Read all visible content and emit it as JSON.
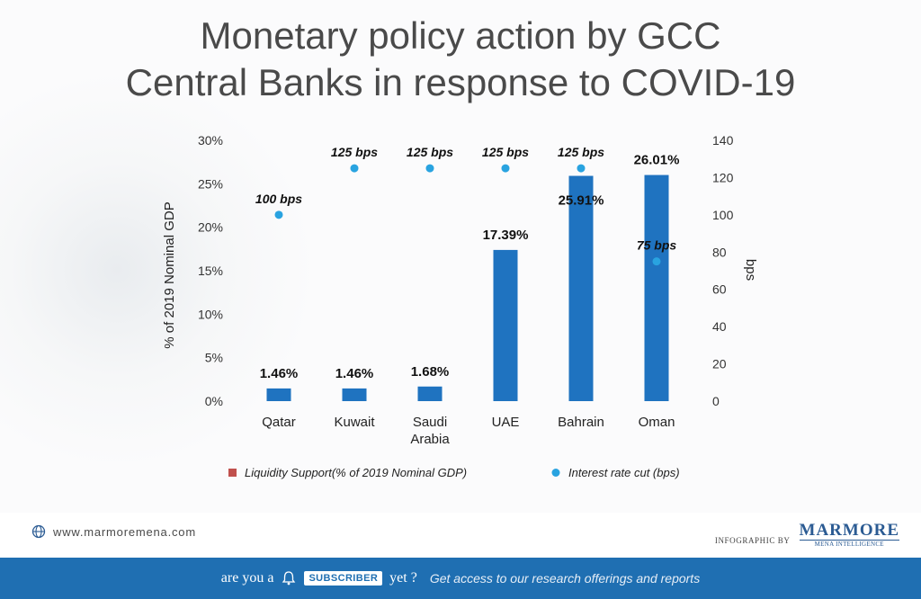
{
  "title_line1": "Monetary policy action by GCC",
  "title_line2": "Central Banks in response to COVID-19",
  "chart_data": {
    "type": "bar",
    "categories": [
      "Qatar",
      "Kuwait",
      "Saudi Arabia",
      "UAE",
      "Bahrain",
      "Oman"
    ],
    "category_lines": [
      [
        "Qatar"
      ],
      [
        "Kuwait"
      ],
      [
        "Saudi",
        "Arabia"
      ],
      [
        "UAE"
      ],
      [
        "Bahrain"
      ],
      [
        "Oman"
      ]
    ],
    "series": [
      {
        "name": "Liquidity Support(% of 2019 Nominal GDP)",
        "axis": "left",
        "values": [
          1.46,
          1.46,
          1.68,
          17.39,
          25.91,
          26.01
        ],
        "labels": [
          "1.46%",
          "1.46%",
          "1.68%",
          "17.39%",
          "25.91%",
          "26.01%"
        ],
        "color": "#1f73c0"
      },
      {
        "name": "Interest rate cut (bps)",
        "axis": "right",
        "type": "scatter",
        "values": [
          100,
          125,
          125,
          125,
          125,
          75
        ],
        "labels": [
          "100 bps",
          "125 bps",
          "125 bps",
          "125 bps",
          "125 bps",
          "75 bps"
        ],
        "color": "#29a3e0"
      }
    ],
    "ylabel": "% of 2019 Nominal GDP",
    "y2label": "bps",
    "ylim": [
      0,
      30
    ],
    "y2lim": [
      0,
      140
    ],
    "y_ticks": [
      "0%",
      "5%",
      "10%",
      "15%",
      "20%",
      "25%",
      "30%"
    ],
    "y2_ticks": [
      "0",
      "20",
      "40",
      "60",
      "80",
      "100",
      "120",
      "140"
    ],
    "grid": false,
    "legend_position": "bottom",
    "legend_swatch_color": "#c0504d"
  },
  "footer": {
    "website": "www.marmoremena.com",
    "infographic_by": "INFOGRAPHIC BY",
    "brand_name": "MARMORE",
    "brand_sub": "MENA INTELLIGENCE"
  },
  "banner": {
    "part1": "are you a",
    "badge": "SUBSCRIBER",
    "part2": "yet ?",
    "cta": "Get access to our research offerings and reports"
  }
}
